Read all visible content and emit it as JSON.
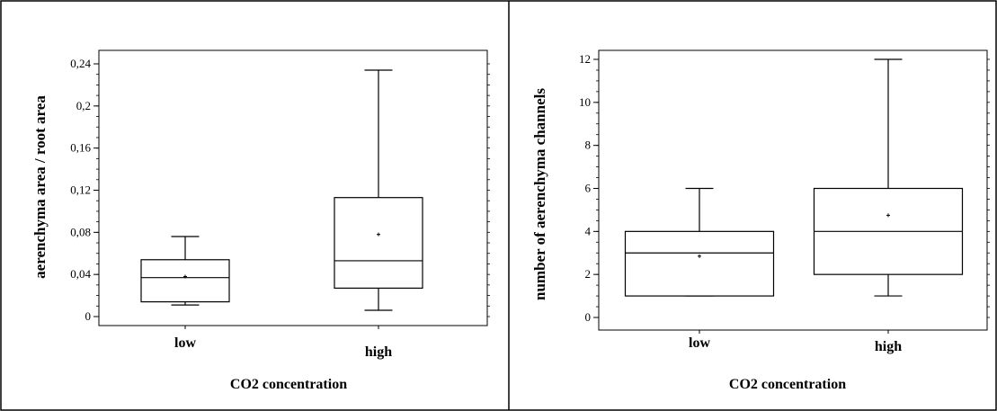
{
  "chart_data": [
    {
      "type": "box",
      "xlabel": "CO2 concentration",
      "ylabel": "aerenchyma area / root area",
      "categories": [
        "low",
        "high"
      ],
      "ylim": [
        0,
        0.24
      ],
      "ytick_labels": [
        "0",
        "0,04",
        "0,08",
        "0,12",
        "0,16",
        "0,2",
        "0,24"
      ],
      "boxes": [
        {
          "category": "low",
          "min": 0.011,
          "q1": 0.014,
          "median": 0.037,
          "q3": 0.054,
          "max": 0.076,
          "mean": 0.038
        },
        {
          "category": "high",
          "min": 0.006,
          "q1": 0.027,
          "median": 0.053,
          "q3": 0.113,
          "max": 0.234,
          "mean": 0.078
        }
      ],
      "grid": false,
      "legend": "none"
    },
    {
      "type": "box",
      "xlabel": "CO2 concentration",
      "ylabel": "number of aerenchyma channels",
      "categories": [
        "low",
        "high"
      ],
      "ylim": [
        0,
        12
      ],
      "ytick_labels": [
        "0",
        "2",
        "4",
        "6",
        "8",
        "10",
        "12"
      ],
      "boxes": [
        {
          "category": "low",
          "min": 1,
          "q1": 1,
          "median": 3,
          "q3": 4,
          "max": 6,
          "mean": 2.85
        },
        {
          "category": "high",
          "min": 1,
          "q1": 2,
          "median": 4,
          "q3": 6,
          "max": 12,
          "mean": 4.75
        }
      ],
      "grid": false,
      "legend": "none"
    }
  ]
}
